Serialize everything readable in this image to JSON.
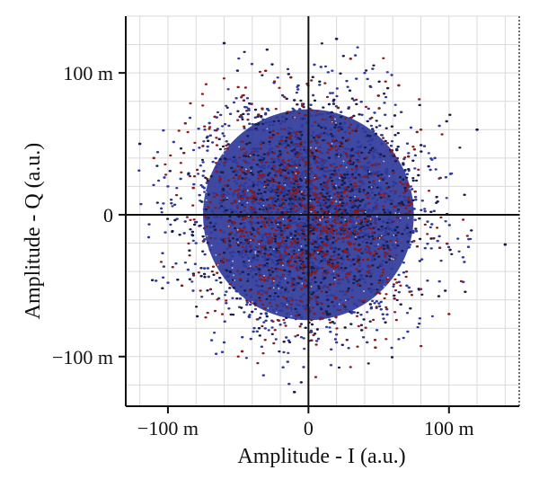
{
  "chart_data": {
    "type": "scatter",
    "title": "",
    "xlabel": "Amplitude - I (a.u.)",
    "ylabel": "Amplitude - Q (a.u.)",
    "xlim": [
      -0.13,
      0.15
    ],
    "ylim": [
      -0.135,
      0.14
    ],
    "x_ticks": [
      {
        "value": -0.1,
        "label": "−100 m"
      },
      {
        "value": 0,
        "label": "0"
      },
      {
        "value": 0.1,
        "label": "100 m"
      }
    ],
    "y_ticks": [
      {
        "value": 0.1,
        "label": "100 m"
      },
      {
        "value": 0,
        "label": "0"
      },
      {
        "value": -0.1,
        "label": "−100 m"
      }
    ],
    "grid": true,
    "legend": "none",
    "description_of_cloud": "dense circular constellation centred at (0,0), radius about 0.1",
    "series": [
      {
        "color": "#2f3a9a",
        "center": [
          0,
          0
        ],
        "sigma": 0.052,
        "point_count": 5200,
        "sample_points": [
          [
            0.0,
            0.0
          ],
          [
            0.05,
            0.03
          ],
          [
            -0.04,
            0.06
          ],
          [
            0.07,
            -0.05
          ],
          [
            -0.08,
            -0.02
          ],
          [
            0.02,
            -0.09
          ],
          [
            -0.03,
            -0.07
          ],
          [
            0.09,
            0.04
          ],
          [
            -0.1,
            0.02
          ],
          [
            0.04,
            0.1
          ],
          [
            0.11,
            -0.03
          ],
          [
            -0.06,
            -0.09
          ]
        ]
      },
      {
        "color": "#8b1a1a",
        "center": [
          0,
          0
        ],
        "sigma": 0.052,
        "point_count": 900,
        "sample_points": [
          [
            0.08,
            0.06
          ],
          [
            -0.09,
            -0.05
          ],
          [
            0.03,
            0.11
          ],
          [
            -0.05,
            0.09
          ],
          [
            0.1,
            -0.07
          ],
          [
            -0.11,
            0.04
          ]
        ]
      }
    ],
    "outliers": [
      [
        -0.06,
        0.121
      ],
      [
        0.02,
        0.124
      ],
      [
        0.14,
        -0.021
      ],
      [
        -0.12,
        0.05
      ],
      [
        0.12,
        0.06
      ],
      [
        -0.01,
        -0.125
      ]
    ],
    "colors": {
      "dots_primary": "#2f3a9a",
      "dots_dark": "#1a1d4a",
      "dots_red": "#8b1a1a",
      "grid": "#d9d9d9",
      "axes": "#111111"
    }
  }
}
